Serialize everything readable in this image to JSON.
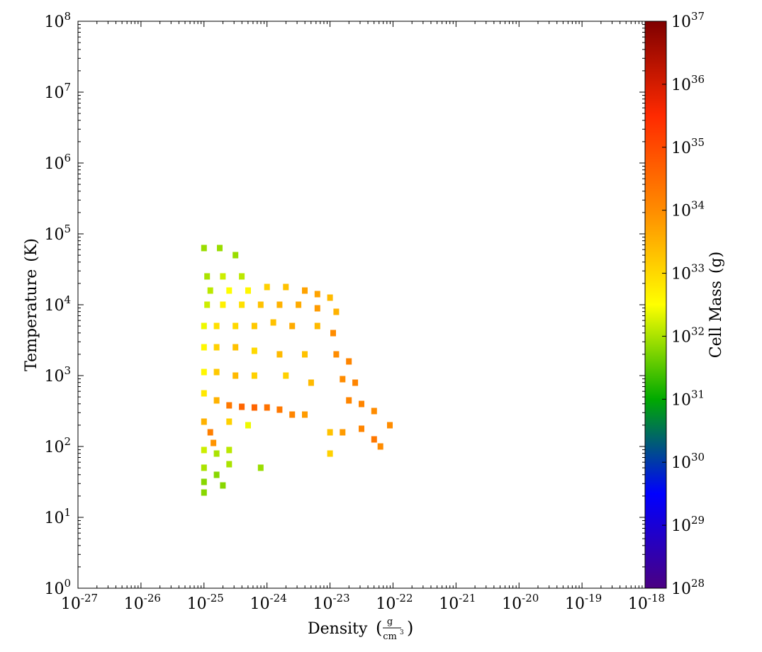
{
  "chart_data": {
    "type": "heatmap",
    "title": "",
    "xlabel": "Density",
    "xunit_num": "g",
    "xunit_den": "cm",
    "xunit_den_exp": "3",
    "ylabel": "Temperature",
    "yunit": "(K)",
    "colorbar_label": "Cell Mass",
    "colorbar_unit": "(g)",
    "x_scale": "log",
    "y_scale": "log",
    "xlim": [
      "1e-27",
      "1e-18"
    ],
    "ylim": [
      "1e0",
      "1e8"
    ],
    "x_ticks": [
      {
        "base": "10",
        "exp": "-27"
      },
      {
        "base": "10",
        "exp": "-26"
      },
      {
        "base": "10",
        "exp": "-25"
      },
      {
        "base": "10",
        "exp": "-24"
      },
      {
        "base": "10",
        "exp": "-23"
      },
      {
        "base": "10",
        "exp": "-22"
      },
      {
        "base": "10",
        "exp": "-21"
      },
      {
        "base": "10",
        "exp": "-20"
      },
      {
        "base": "10",
        "exp": "-19"
      },
      {
        "base": "10",
        "exp": "-18"
      }
    ],
    "y_ticks": [
      {
        "base": "10",
        "exp": "0"
      },
      {
        "base": "10",
        "exp": "1"
      },
      {
        "base": "10",
        "exp": "2"
      },
      {
        "base": "10",
        "exp": "3"
      },
      {
        "base": "10",
        "exp": "4"
      },
      {
        "base": "10",
        "exp": "5"
      },
      {
        "base": "10",
        "exp": "6"
      },
      {
        "base": "10",
        "exp": "7"
      },
      {
        "base": "10",
        "exp": "8"
      }
    ],
    "colorbar_ticks": [
      {
        "base": "10",
        "exp": "28"
      },
      {
        "base": "10",
        "exp": "29"
      },
      {
        "base": "10",
        "exp": "30"
      },
      {
        "base": "10",
        "exp": "31"
      },
      {
        "base": "10",
        "exp": "32"
      },
      {
        "base": "10",
        "exp": "33"
      },
      {
        "base": "10",
        "exp": "34"
      },
      {
        "base": "10",
        "exp": "35"
      },
      {
        "base": "10",
        "exp": "36"
      },
      {
        "base": "10",
        "exp": "37"
      }
    ],
    "colorbar_range_log10": [
      28,
      37
    ],
    "colormap": [
      "#4b0082",
      "#0000ff",
      "#00aa00",
      "#ffff00",
      "#ff8c00",
      "#ff2a00",
      "#7f0000"
    ],
    "cells_log10": [
      [
        -25.0,
        4.8,
        31.9
      ],
      [
        -24.75,
        4.8,
        31.9
      ],
      [
        -24.5,
        4.7,
        31.9
      ],
      [
        -24.95,
        4.4,
        32.0
      ],
      [
        -24.7,
        4.4,
        32.2
      ],
      [
        -24.4,
        4.4,
        32.1
      ],
      [
        -24.9,
        4.2,
        32.1
      ],
      [
        -24.6,
        4.2,
        32.5
      ],
      [
        -24.3,
        4.2,
        32.6
      ],
      [
        -24.0,
        4.25,
        33.1
      ],
      [
        -23.7,
        4.25,
        33.3
      ],
      [
        -23.4,
        4.2,
        33.7
      ],
      [
        -23.2,
        4.15,
        33.7
      ],
      [
        -23.0,
        4.1,
        33.4
      ],
      [
        -24.95,
        4.0,
        32.2
      ],
      [
        -24.7,
        4.0,
        32.7
      ],
      [
        -24.4,
        4.0,
        32.9
      ],
      [
        -24.1,
        4.0,
        33.3
      ],
      [
        -23.8,
        4.0,
        33.5
      ],
      [
        -23.5,
        4.0,
        33.6
      ],
      [
        -23.2,
        3.95,
        33.8
      ],
      [
        -22.9,
        3.9,
        33.5
      ],
      [
        -25.0,
        3.7,
        32.4
      ],
      [
        -24.8,
        3.7,
        32.9
      ],
      [
        -24.5,
        3.7,
        33.0
      ],
      [
        -24.2,
        3.7,
        33.2
      ],
      [
        -23.9,
        3.75,
        33.3
      ],
      [
        -23.6,
        3.7,
        33.6
      ],
      [
        -23.2,
        3.7,
        33.4
      ],
      [
        -22.95,
        3.6,
        34.0
      ],
      [
        -25.0,
        3.4,
        32.6
      ],
      [
        -24.8,
        3.4,
        33.1
      ],
      [
        -24.5,
        3.4,
        33.3
      ],
      [
        -24.2,
        3.35,
        33.0
      ],
      [
        -23.8,
        3.3,
        33.4
      ],
      [
        -23.4,
        3.3,
        33.3
      ],
      [
        -22.9,
        3.3,
        34.0
      ],
      [
        -22.7,
        3.2,
        34.1
      ],
      [
        -25.0,
        3.05,
        32.6
      ],
      [
        -24.8,
        3.05,
        33.2
      ],
      [
        -24.5,
        3.0,
        33.4
      ],
      [
        -24.2,
        3.0,
        33.1
      ],
      [
        -23.7,
        3.0,
        33.1
      ],
      [
        -23.3,
        2.9,
        33.4
      ],
      [
        -22.8,
        2.95,
        34.0
      ],
      [
        -22.6,
        2.9,
        34.1
      ],
      [
        -25.0,
        2.75,
        32.8
      ],
      [
        -24.8,
        2.65,
        33.5
      ],
      [
        -24.6,
        2.58,
        34.3
      ],
      [
        -24.4,
        2.56,
        34.6
      ],
      [
        -24.2,
        2.55,
        34.6
      ],
      [
        -24.0,
        2.55,
        34.4
      ],
      [
        -23.8,
        2.52,
        34.3
      ],
      [
        -23.6,
        2.45,
        34.1
      ],
      [
        -23.4,
        2.45,
        33.8
      ],
      [
        -22.7,
        2.65,
        34.1
      ],
      [
        -22.5,
        2.6,
        34.1
      ],
      [
        -22.3,
        2.5,
        34.0
      ],
      [
        -25.0,
        2.35,
        33.5
      ],
      [
        -24.9,
        2.2,
        34.2
      ],
      [
        -24.85,
        2.05,
        33.9
      ],
      [
        -24.6,
        2.35,
        33.1
      ],
      [
        -24.3,
        2.3,
        32.4
      ],
      [
        -23.0,
        2.2,
        33.3
      ],
      [
        -22.8,
        2.2,
        33.8
      ],
      [
        -22.5,
        2.25,
        34.1
      ],
      [
        -22.3,
        2.1,
        34.3
      ],
      [
        -22.2,
        2.0,
        34.0
      ],
      [
        -22.05,
        2.3,
        34.0
      ],
      [
        -25.0,
        1.95,
        32.2
      ],
      [
        -24.8,
        1.9,
        32.0
      ],
      [
        -24.6,
        1.95,
        32.1
      ],
      [
        -25.0,
        1.7,
        32.0
      ],
      [
        -24.8,
        1.6,
        31.8
      ],
      [
        -24.6,
        1.75,
        32.0
      ],
      [
        -25.0,
        1.5,
        31.8
      ],
      [
        -24.7,
        1.45,
        31.8
      ],
      [
        -24.1,
        1.7,
        31.9
      ],
      [
        -23.0,
        1.9,
        33.1
      ],
      [
        -25.0,
        1.35,
        31.8
      ]
    ]
  }
}
